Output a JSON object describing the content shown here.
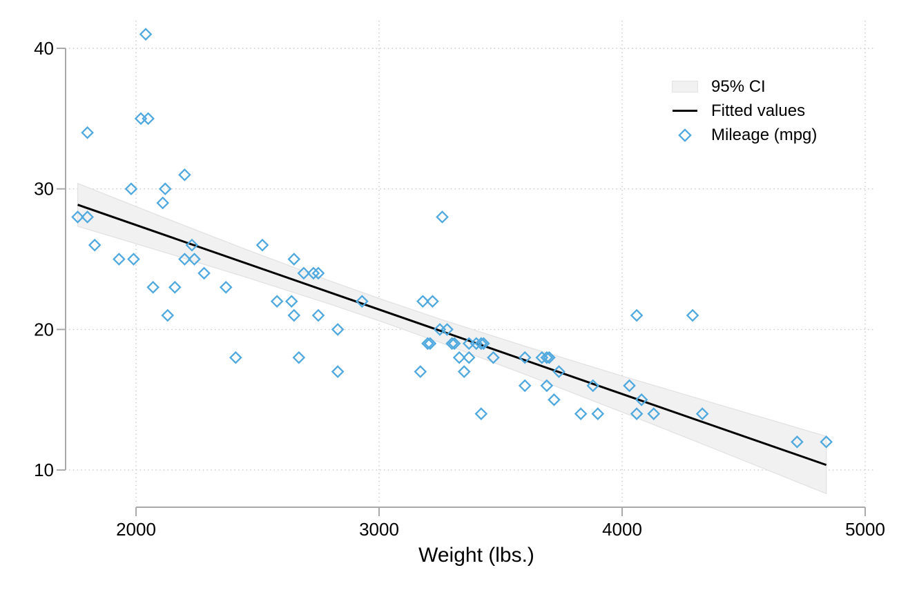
{
  "figure": {
    "background": "#FFFFFF"
  },
  "chart_data": {
    "type": "scatter",
    "title": "",
    "xlabel": "Weight (lbs.)",
    "ylabel": "",
    "x_axis": {
      "ticks": [
        2000,
        3000,
        4000,
        5000
      ],
      "range": [
        1700,
        5050
      ]
    },
    "y_axis": {
      "ticks": [
        10,
        20,
        30,
        40
      ],
      "range": [
        8,
        41.5
      ]
    },
    "grid": {
      "style": "dotted",
      "horizontal": true,
      "vertical": true
    },
    "colors": {
      "marker": "#4FA9DE",
      "fit_line": "#000000",
      "ci_fill": "#F1F1F1",
      "ci_edge": "#E2E2E2",
      "axis": "#A9A9A9",
      "grid": "#C9C9C9",
      "text": "#000000"
    },
    "legend": {
      "position": "top-right-inside",
      "items": [
        {
          "label": "95% CI",
          "swatch": "area"
        },
        {
          "label": "Fitted values",
          "swatch": "line"
        },
        {
          "label": "Mileage (mpg)",
          "swatch": "diamond"
        }
      ]
    },
    "scatter": {
      "name": "Mileage (mpg)",
      "marker": "hollow-diamond",
      "points_weight_mpg": [
        [
          2930,
          22
        ],
        [
          3350,
          17
        ],
        [
          2640,
          22
        ],
        [
          3250,
          20
        ],
        [
          4080,
          15
        ],
        [
          3670,
          18
        ],
        [
          2230,
          26
        ],
        [
          3280,
          20
        ],
        [
          3880,
          16
        ],
        [
          3400,
          19
        ],
        [
          4330,
          14
        ],
        [
          3900,
          14
        ],
        [
          4290,
          21
        ],
        [
          2110,
          29
        ],
        [
          3690,
          16
        ],
        [
          3180,
          22
        ],
        [
          3220,
          22
        ],
        [
          2750,
          24
        ],
        [
          3430,
          19
        ],
        [
          2120,
          30
        ],
        [
          3600,
          18
        ],
        [
          3600,
          16
        ],
        [
          3740,
          17
        ],
        [
          1800,
          28
        ],
        [
          2650,
          21
        ],
        [
          4840,
          12
        ],
        [
          4720,
          12
        ],
        [
          3830,
          14
        ],
        [
          2580,
          22
        ],
        [
          4060,
          14
        ],
        [
          3720,
          15
        ],
        [
          3370,
          18
        ],
        [
          4130,
          14
        ],
        [
          2830,
          20
        ],
        [
          4060,
          21
        ],
        [
          3310,
          19
        ],
        [
          3300,
          19
        ],
        [
          3690,
          18
        ],
        [
          3370,
          19
        ],
        [
          2730,
          24
        ],
        [
          4030,
          16
        ],
        [
          3260,
          28
        ],
        [
          1800,
          34
        ],
        [
          2200,
          25
        ],
        [
          2520,
          26
        ],
        [
          3330,
          18
        ],
        [
          3700,
          18
        ],
        [
          3470,
          18
        ],
        [
          3210,
          19
        ],
        [
          3200,
          19
        ],
        [
          3420,
          19
        ],
        [
          2690,
          24
        ],
        [
          2830,
          17
        ],
        [
          2070,
          23
        ],
        [
          2650,
          25
        ],
        [
          2370,
          23
        ],
        [
          2020,
          35
        ],
        [
          2280,
          24
        ],
        [
          2750,
          21
        ],
        [
          2130,
          21
        ],
        [
          2240,
          25
        ],
        [
          1760,
          28
        ],
        [
          1980,
          30
        ],
        [
          3420,
          14
        ],
        [
          1830,
          26
        ],
        [
          2050,
          35
        ],
        [
          2410,
          18
        ],
        [
          2200,
          31
        ],
        [
          2670,
          18
        ],
        [
          2160,
          23
        ],
        [
          2040,
          41
        ],
        [
          1930,
          25
        ],
        [
          1990,
          25
        ],
        [
          3170,
          17
        ]
      ]
    },
    "fit_line": {
      "name": "Fitted values",
      "x": [
        1760,
        4840
      ],
      "y": [
        28.87,
        10.36
      ]
    },
    "ci_band": {
      "name": "95% CI",
      "x": [
        1760,
        2100,
        2450,
        2800,
        3020,
        3250,
        3600,
        4000,
        4400,
        4840
      ],
      "upper": [
        30.39,
        28.06,
        25.71,
        23.44,
        22.09,
        20.74,
        18.81,
        16.69,
        14.64,
        12.4
      ],
      "lower": [
        27.34,
        25.58,
        23.73,
        21.79,
        20.5,
        19.08,
        16.81,
        14.12,
        11.37,
        8.32
      ]
    }
  }
}
